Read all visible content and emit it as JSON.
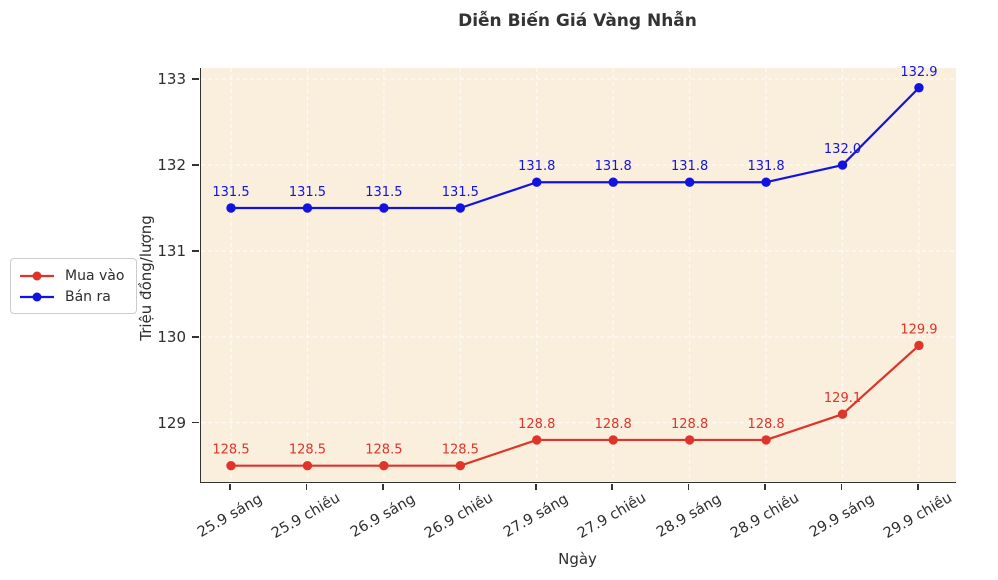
{
  "chart_data": {
    "type": "line",
    "title": "Diễn Biến Giá Vàng Nhẫn",
    "xlabel": "Ngày",
    "ylabel": "Triệu đồng/lượng",
    "categories": [
      "25.9 sáng",
      "25.9 chiều",
      "26.9 sáng",
      "26.9 chiều",
      "27.9 sáng",
      "27.9 chiều",
      "28.9 sáng",
      "28.9 chiều",
      "29.9 sáng",
      "29.9 chiều"
    ],
    "series": [
      {
        "name": "Mua vào",
        "color": "#df342a",
        "values": [
          128.5,
          128.5,
          128.5,
          128.5,
          128.8,
          128.8,
          128.8,
          128.8,
          129.1,
          129.9
        ]
      },
      {
        "name": "Bán ra",
        "color": "#1313e0",
        "values": [
          131.5,
          131.5,
          131.5,
          131.5,
          131.8,
          131.8,
          131.8,
          131.8,
          132.0,
          132.9
        ]
      }
    ],
    "point_labels_decimals": 1,
    "yticks": [
      129,
      130,
      131,
      132,
      133
    ],
    "ylim": [
      128.31,
      133.13
    ],
    "grid": true,
    "grid_linestyle": "dashed",
    "grid_color": "#ffffff",
    "legend_position": "outside-left",
    "plot_background": "#faeedd",
    "text_color": "#2e2e2e"
  }
}
